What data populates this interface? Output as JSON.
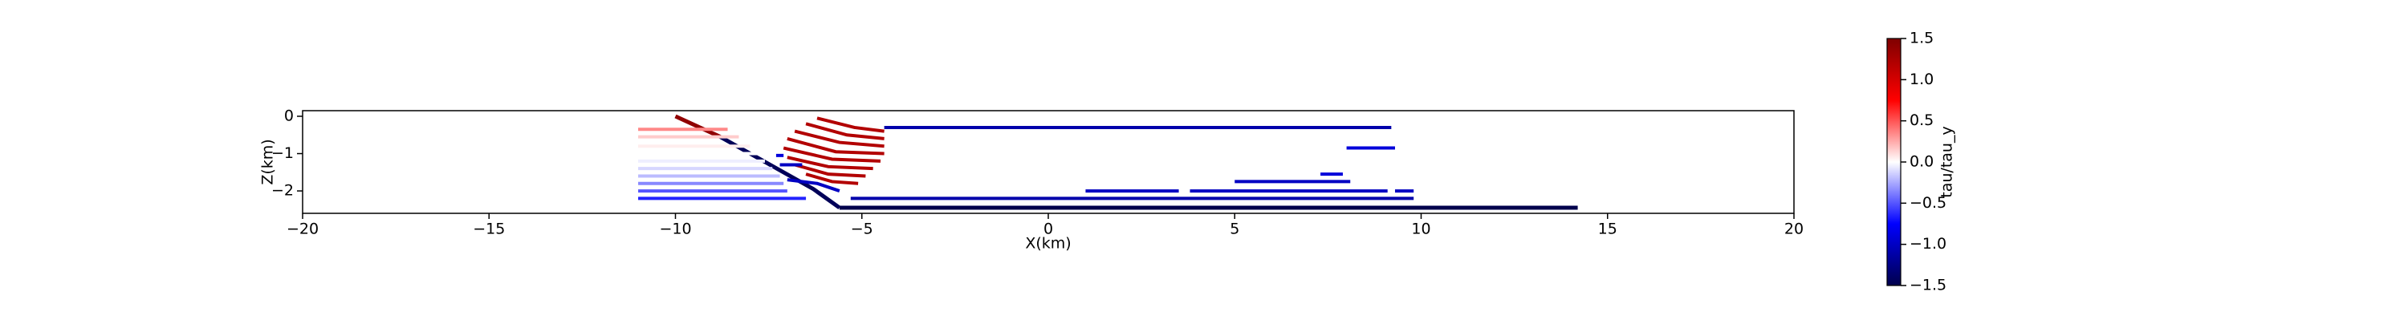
{
  "chart_data": {
    "type": "segments",
    "xlabel": "X(km)",
    "ylabel": "Z(km)",
    "colorbar_label": "tau/tau_y",
    "xlim": [
      -20,
      20
    ],
    "xticks": [
      {
        "value": -20,
        "label": "−20"
      },
      {
        "value": -15,
        "label": "−15"
      },
      {
        "value": -10,
        "label": "−10"
      },
      {
        "value": -5,
        "label": "−5"
      },
      0,
      5,
      10,
      15,
      20
    ],
    "ylim": [
      -2.6,
      0.15
    ],
    "yticks": [
      0,
      {
        "value": -1,
        "label": "−1"
      },
      {
        "value": -2,
        "label": "−2"
      }
    ],
    "clim": [
      -1.5,
      1.5
    ],
    "cticks": [
      {
        "value": -1.5,
        "label": "−1.5"
      },
      {
        "value": -1,
        "label": "−1.0"
      },
      {
        "value": -0.5,
        "label": "−0.5"
      },
      {
        "value": 0,
        "label": "0.0"
      },
      0.5,
      {
        "value": 1,
        "label": "1.0"
      },
      1.5
    ],
    "colormap": [
      "#00004c",
      "#0000ff",
      "#ffffff",
      "#ff0000",
      "#7f0000"
    ],
    "segments": [
      {
        "x": [
          -10,
          -8.8
        ],
        "z": [
          0,
          -0.55
        ],
        "value": 1.4
      },
      {
        "x": [
          -8.8,
          -6.3,
          -5.6
        ],
        "z": [
          -0.55,
          -1.95,
          -2.45
        ],
        "value": -1.45
      },
      {
        "x": [
          -5.6,
          14.2
        ],
        "z": [
          -2.45,
          -2.45
        ],
        "value": -1.5
      },
      {
        "x": [
          -11,
          -8.6
        ],
        "z": [
          -0.35,
          -0.35
        ],
        "value": 0.35
      },
      {
        "x": [
          -11,
          -8.3
        ],
        "z": [
          -0.55,
          -0.55
        ],
        "value": 0.15
      },
      {
        "x": [
          -11,
          -8
        ],
        "z": [
          -0.8,
          -0.8
        ],
        "value": 0.05
      },
      {
        "x": [
          -11,
          -7.6
        ],
        "z": [
          -1.0,
          -1.0
        ],
        "value": 0
      },
      {
        "x": [
          -11,
          -7.6
        ],
        "z": [
          -1.2,
          -1.2
        ],
        "value": -0.05
      },
      {
        "x": [
          -11,
          -7.4
        ],
        "z": [
          -1.4,
          -1.4
        ],
        "value": -0.12
      },
      {
        "x": [
          -11,
          -7.2
        ],
        "z": [
          -1.6,
          -1.6
        ],
        "value": -0.2
      },
      {
        "x": [
          -11,
          -7.1
        ],
        "z": [
          -1.8,
          -1.8
        ],
        "value": -0.35
      },
      {
        "x": [
          -11,
          -7.0
        ],
        "z": [
          -2.0,
          -2.0
        ],
        "value": -0.5
      },
      {
        "x": [
          -11,
          -6.5
        ],
        "z": [
          -2.2,
          -2.2
        ],
        "value": -0.65
      },
      {
        "x": [
          -6.2,
          -5.2,
          -4.4
        ],
        "z": [
          -0.05,
          -0.3,
          -0.4
        ],
        "value": 1.2
      },
      {
        "x": [
          -6.5,
          -5.4,
          -4.4
        ],
        "z": [
          -0.2,
          -0.5,
          -0.6
        ],
        "value": 1.2
      },
      {
        "x": [
          -6.8,
          -5.6,
          -4.4
        ],
        "z": [
          -0.4,
          -0.7,
          -0.8
        ],
        "value": 1.2
      },
      {
        "x": [
          -7.0,
          -5.7,
          -4.4
        ],
        "z": [
          -0.6,
          -0.95,
          -1.0
        ],
        "value": 1.2
      },
      {
        "x": [
          -7.1,
          -5.8,
          -4.5
        ],
        "z": [
          -0.85,
          -1.15,
          -1.2
        ],
        "value": 1.2
      },
      {
        "x": [
          -7.0,
          -5.9,
          -4.7
        ],
        "z": [
          -1.1,
          -1.35,
          -1.4
        ],
        "value": 1.2
      },
      {
        "x": [
          -6.8,
          -5.9,
          -4.9
        ],
        "z": [
          -1.3,
          -1.55,
          -1.6
        ],
        "value": 1.2
      },
      {
        "x": [
          -6.5,
          -5.8,
          -5.1
        ],
        "z": [
          -1.55,
          -1.75,
          -1.8
        ],
        "value": 1.2
      },
      {
        "x": [
          -7.3,
          -7.1
        ],
        "z": [
          -1.05,
          -1.05
        ],
        "value": -0.9
      },
      {
        "x": [
          -7.2,
          -6.6
        ],
        "z": [
          -1.3,
          -1.3
        ],
        "value": -1.0
      },
      {
        "x": [
          -7.0,
          -6.2,
          -5.6
        ],
        "z": [
          -1.7,
          -1.8,
          -2.0
        ],
        "value": -1.0
      },
      {
        "x": [
          -4.4,
          9.2
        ],
        "z": [
          -0.3,
          -0.3
        ],
        "value": -1.1
      },
      {
        "x": [
          8.0,
          9.3
        ],
        "z": [
          -0.85,
          -0.85
        ],
        "value": -0.9
      },
      {
        "x": [
          7.3,
          7.9
        ],
        "z": [
          -1.55,
          -1.55
        ],
        "value": -0.9
      },
      {
        "x": [
          5.0,
          8.1
        ],
        "z": [
          -1.75,
          -1.75
        ],
        "value": -1.0
      },
      {
        "x": [
          1.0,
          3.5
        ],
        "z": [
          -2.0,
          -2.0
        ],
        "value": -1.0
      },
      {
        "x": [
          3.8,
          9.1
        ],
        "z": [
          -2.0,
          -2.0
        ],
        "value": -1.0
      },
      {
        "x": [
          9.3,
          9.8
        ],
        "z": [
          -2.0,
          -2.0
        ],
        "value": -1.0
      },
      {
        "x": [
          -5.3,
          9.8
        ],
        "z": [
          -2.2,
          -2.2
        ],
        "value": -1.1
      }
    ]
  }
}
